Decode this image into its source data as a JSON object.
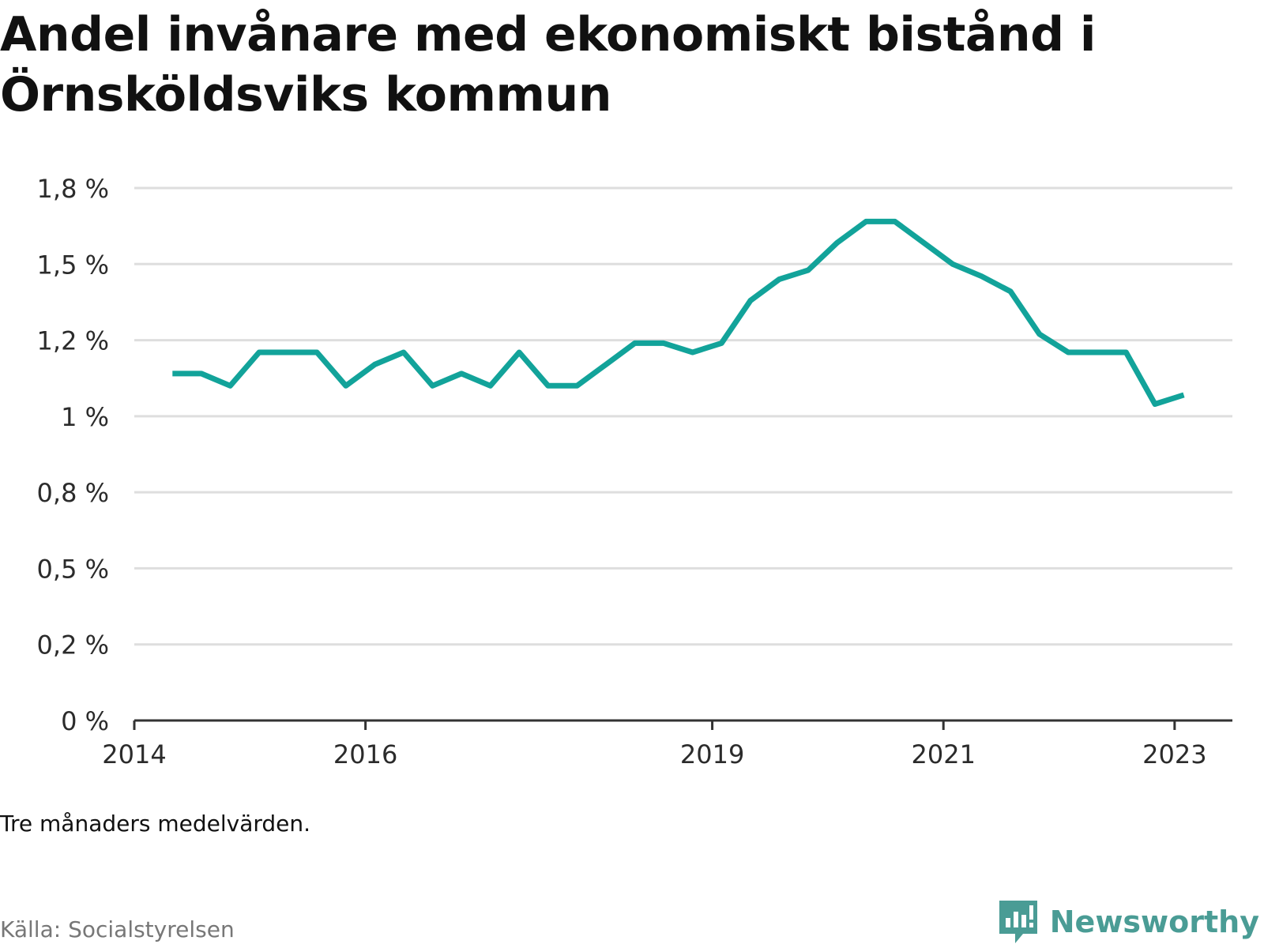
{
  "title": "Andel invånare med ekonomiskt bistånd i Örnsköldsviks kommun",
  "note": "Tre månaders medelvärden.",
  "source": "Källa: Socialstyrelsen",
  "brand": {
    "name": "Newsworthy",
    "icon": "newsworthy-logo-icon",
    "color": "#4a9c95"
  },
  "chart_data": {
    "type": "line",
    "title": "Andel invånare med ekonomiskt bistånd i Örnsköldsviks kommun",
    "xlabel": "",
    "ylabel": "",
    "ylim": [
      0,
      1.75
    ],
    "xlim": [
      2014.0,
      2023.5
    ],
    "grid": true,
    "line_color": "#12a39a",
    "y_ticks": [
      {
        "value": 0,
        "label": "0 %"
      },
      {
        "value": 0.25,
        "label": "0,2 %"
      },
      {
        "value": 0.5,
        "label": "0,5 %"
      },
      {
        "value": 0.75,
        "label": "0,8 %"
      },
      {
        "value": 1.0,
        "label": "1 %"
      },
      {
        "value": 1.25,
        "label": "1,2 %"
      },
      {
        "value": 1.5,
        "label": "1,5 %"
      },
      {
        "value": 1.75,
        "label": "1,8 %"
      }
    ],
    "x_ticks": [
      {
        "value": 2014.0,
        "label": "2014"
      },
      {
        "value": 2016.0,
        "label": "2016"
      },
      {
        "value": 2019.0,
        "label": "2019"
      },
      {
        "value": 2021.0,
        "label": "2021"
      },
      {
        "value": 2023.0,
        "label": "2023"
      }
    ],
    "series": [
      {
        "x": [
          2014.33,
          2014.58,
          2014.83,
          2015.08,
          2015.33,
          2015.58,
          2015.83,
          2016.08,
          2016.33,
          2016.58,
          2016.83,
          2017.08,
          2017.33,
          2017.58,
          2017.83,
          2018.08,
          2018.33,
          2018.58,
          2018.83,
          2019.08,
          2019.33,
          2019.58,
          2019.83,
          2020.08,
          2020.33,
          2020.58,
          2020.83,
          2021.08,
          2021.33,
          2021.58,
          2021.83,
          2022.08,
          2022.33,
          2022.58,
          2022.83,
          2023.08
        ],
        "values": [
          1.14,
          1.14,
          1.1,
          1.21,
          1.21,
          1.21,
          1.1,
          1.17,
          1.21,
          1.1,
          1.14,
          1.1,
          1.21,
          1.1,
          1.1,
          1.17,
          1.24,
          1.24,
          1.21,
          1.24,
          1.38,
          1.45,
          1.48,
          1.57,
          1.64,
          1.64,
          1.57,
          1.5,
          1.46,
          1.41,
          1.27,
          1.21,
          1.21,
          1.21,
          1.04,
          1.07
        ]
      }
    ]
  }
}
